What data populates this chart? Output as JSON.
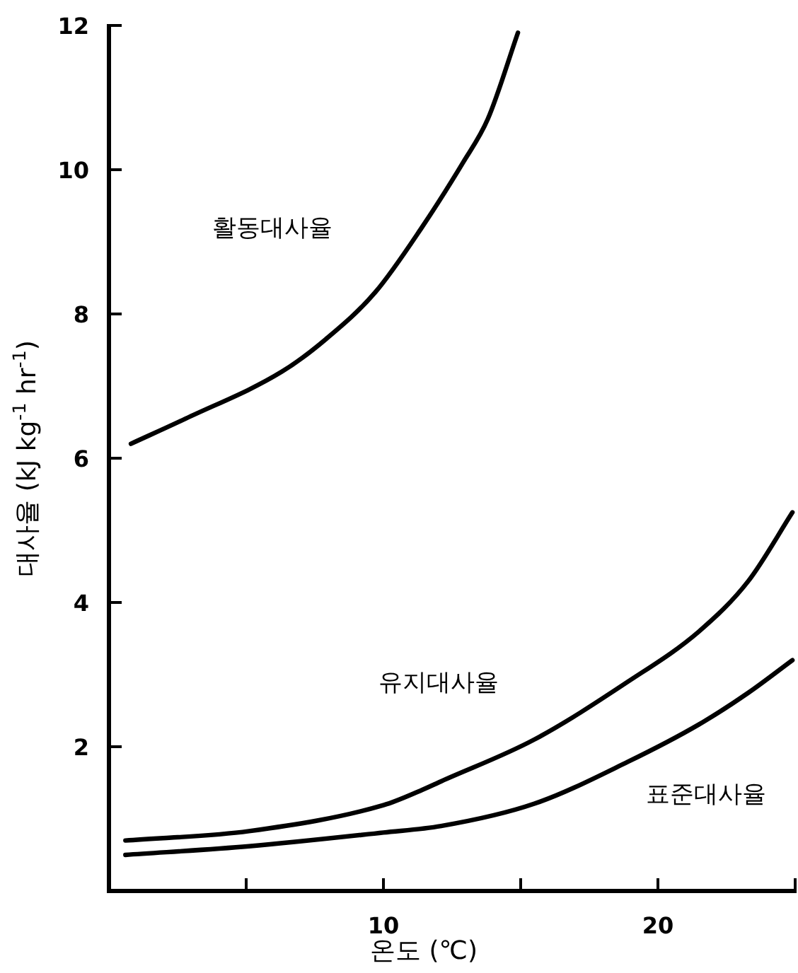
{
  "chart_data": {
    "type": "line",
    "xlabel": "온도 (℃)",
    "ylabel": "대사율 (kJ kg$^{-1}$ hr$^{-1}$)",
    "xlim": [
      0,
      25
    ],
    "ylim": [
      0,
      12
    ],
    "xticks": [
      {
        "value": 5,
        "label": null
      },
      10,
      {
        "value": 15,
        "label": null
      },
      20,
      {
        "value": 25,
        "label": null
      }
    ],
    "yticks": [
      2,
      4,
      6,
      8,
      10,
      12
    ],
    "grid": false,
    "legend": false,
    "marker": "none",
    "line_style": "solid",
    "series": [
      {
        "name": "활동대사율",
        "color": "#000000",
        "x": [
          0.8,
          2.8,
          6.3,
          7.9,
          9.7,
          11.4,
          12.9,
          13.8,
          14.9
        ],
        "values": [
          6.2,
          6.55,
          7.2,
          7.65,
          8.3,
          9.2,
          10.1,
          10.7,
          11.9
        ]
      },
      {
        "name": "유지대사율",
        "color": "#000000",
        "x": [
          0.6,
          5.1,
          10,
          11.4,
          12.1,
          15.5,
          18.9,
          21.5,
          23.3,
          24.9
        ],
        "values": [
          0.7,
          0.83,
          1.19,
          1.4,
          1.52,
          2.1,
          2.9,
          3.6,
          4.3,
          5.25
        ]
      },
      {
        "name": "표준대사율",
        "color": "#000000",
        "x": [
          0.6,
          5.1,
          10,
          12.1,
          15.5,
          18.9,
          21.5,
          23.3,
          24.9
        ],
        "values": [
          0.5,
          0.62,
          0.81,
          0.9,
          1.21,
          1.79,
          2.31,
          2.75,
          3.2
        ]
      }
    ]
  }
}
